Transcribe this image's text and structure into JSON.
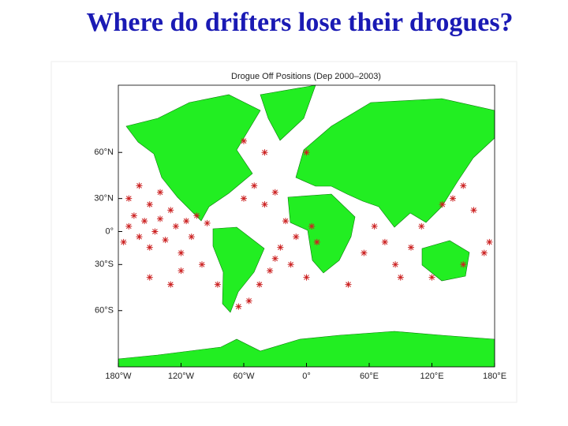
{
  "title": "Where do drifters lose their drogues?",
  "chart_data": {
    "type": "scatter",
    "title": "Drogue Off Positions (Dep 2000–2003)",
    "projection": "mercator",
    "color": "#cc2222",
    "xlim": [
      -180,
      180
    ],
    "ylim": [
      -78,
      80
    ],
    "xticks": [
      {
        "value": -180,
        "label": "180°W"
      },
      {
        "value": -120,
        "label": "120°W"
      },
      {
        "value": -60,
        "label": "60°W"
      },
      {
        "value": 0,
        "label": "0°"
      },
      {
        "value": 60,
        "label": "60°E"
      },
      {
        "value": 120,
        "label": "120°E"
      },
      {
        "value": 180,
        "label": "180°E"
      }
    ],
    "yticks": [
      {
        "value": 60,
        "label": "60°N"
      },
      {
        "value": 30,
        "label": "30°N"
      },
      {
        "value": 0,
        "label": "0°"
      },
      {
        "value": -30,
        "label": "30°S"
      },
      {
        "value": -60,
        "label": "60°S"
      }
    ],
    "x": [
      -175,
      -170,
      -165,
      -160,
      -155,
      -150,
      -145,
      -140,
      -135,
      -130,
      -125,
      -120,
      -115,
      -110,
      -105,
      -100,
      -95,
      -150,
      -130,
      -120,
      -85,
      -60,
      -50,
      -40,
      -30,
      -20,
      -10,
      -25,
      -15,
      0,
      10,
      5,
      -35,
      -45,
      -55,
      -65,
      55,
      65,
      75,
      85,
      90,
      100,
      110,
      130,
      140,
      150,
      160,
      170,
      175,
      120,
      150,
      -60,
      -40,
      0,
      -170,
      -160,
      -140,
      -150,
      -30,
      40
    ],
    "values": [
      -10,
      5,
      15,
      -5,
      10,
      -15,
      0,
      12,
      -8,
      20,
      5,
      -20,
      10,
      -5,
      15,
      -30,
      8,
      -40,
      -45,
      -35,
      -45,
      30,
      40,
      25,
      35,
      10,
      -5,
      -15,
      -30,
      -40,
      -10,
      5,
      -35,
      -45,
      -55,
      -58,
      -20,
      5,
      -10,
      -30,
      -40,
      -15,
      5,
      25,
      30,
      40,
      20,
      -20,
      -10,
      -40,
      -30,
      65,
      60,
      60,
      30,
      40,
      35,
      25,
      -25,
      -45
    ]
  }
}
